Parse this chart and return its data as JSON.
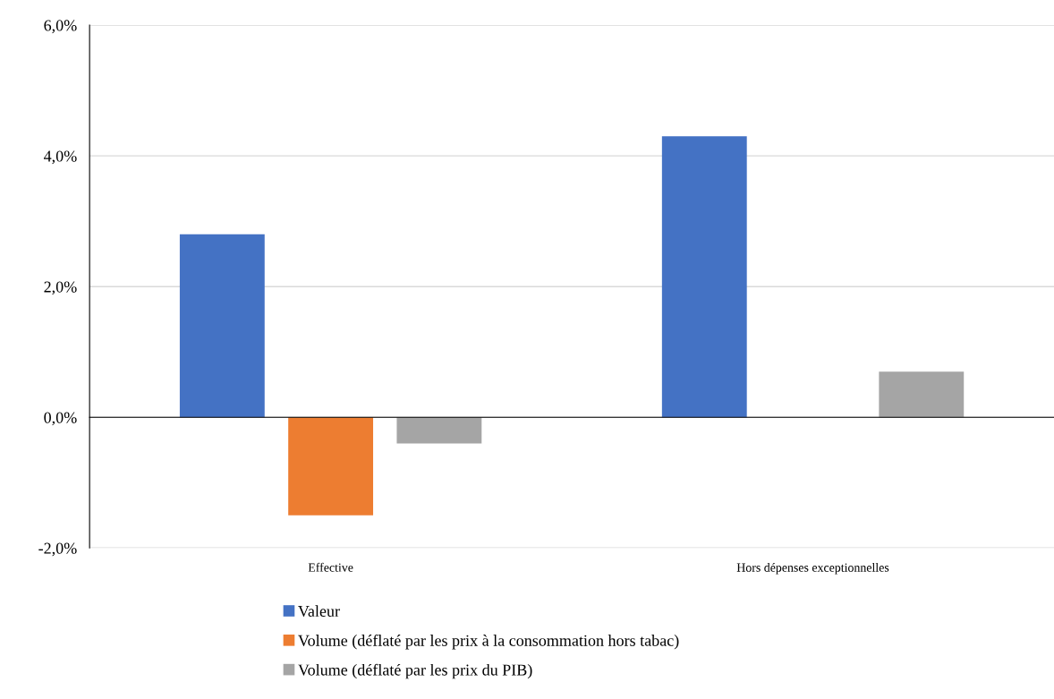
{
  "chart_data": {
    "type": "bar",
    "categories": [
      "Effective",
      "Hors dépenses exceptionnelles"
    ],
    "series": [
      {
        "name": "Valeur",
        "color": "#4472c4",
        "values": [
          2.8,
          4.3
        ]
      },
      {
        "name": "Volume (déflaté par les prix à la consommation hors tabac)",
        "color": "#ed7d31",
        "values": [
          -1.5,
          null
        ]
      },
      {
        "name": "Volume (déflaté par les prix du PIB)",
        "color": "#a5a5a5",
        "values": [
          -0.4,
          0.7
        ]
      }
    ],
    "ylim": [
      -2,
      6
    ],
    "yticks": [
      {
        "value": -2,
        "label": "-2,0%"
      },
      {
        "value": 0,
        "label": "0,0%"
      },
      {
        "value": 2,
        "label": "2,0%"
      },
      {
        "value": 4,
        "label": "4,0%"
      },
      {
        "value": 6,
        "label": "6,0%"
      }
    ],
    "grid": "y",
    "legend": "bottom"
  }
}
